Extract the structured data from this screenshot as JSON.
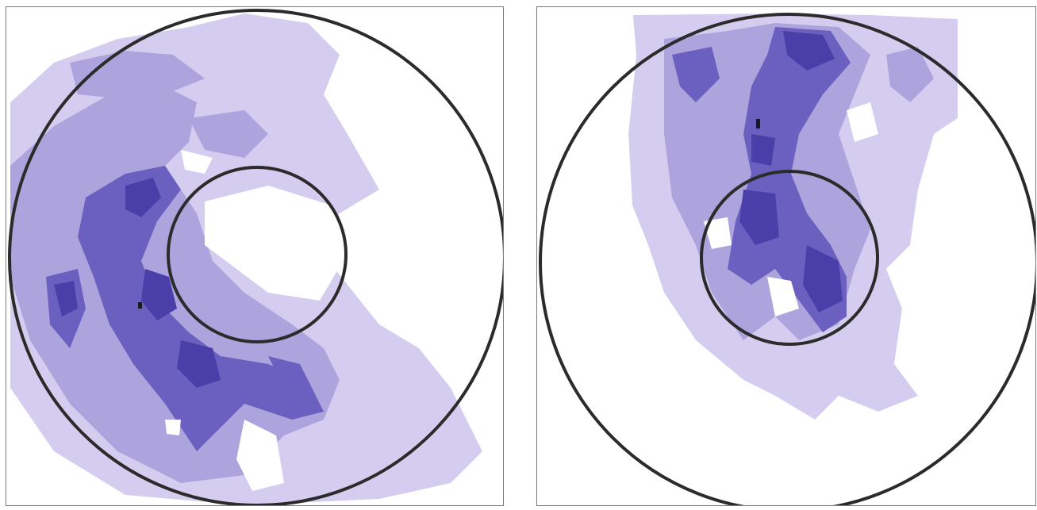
{
  "figure": {
    "panels": [
      {
        "name": "left-radar-panel",
        "dominant_color": "#5a4fb5",
        "light_color": "#cfc8ec",
        "medium_color": "#9a8fd4"
      },
      {
        "name": "right-radar-panel",
        "dominant_color": "#5a4fb5",
        "light_color": "#cfc8ec",
        "medium_color": "#9a8fd4"
      }
    ],
    "ring_color": "#2b2b2b",
    "frame_color": "#7a7a7a"
  }
}
